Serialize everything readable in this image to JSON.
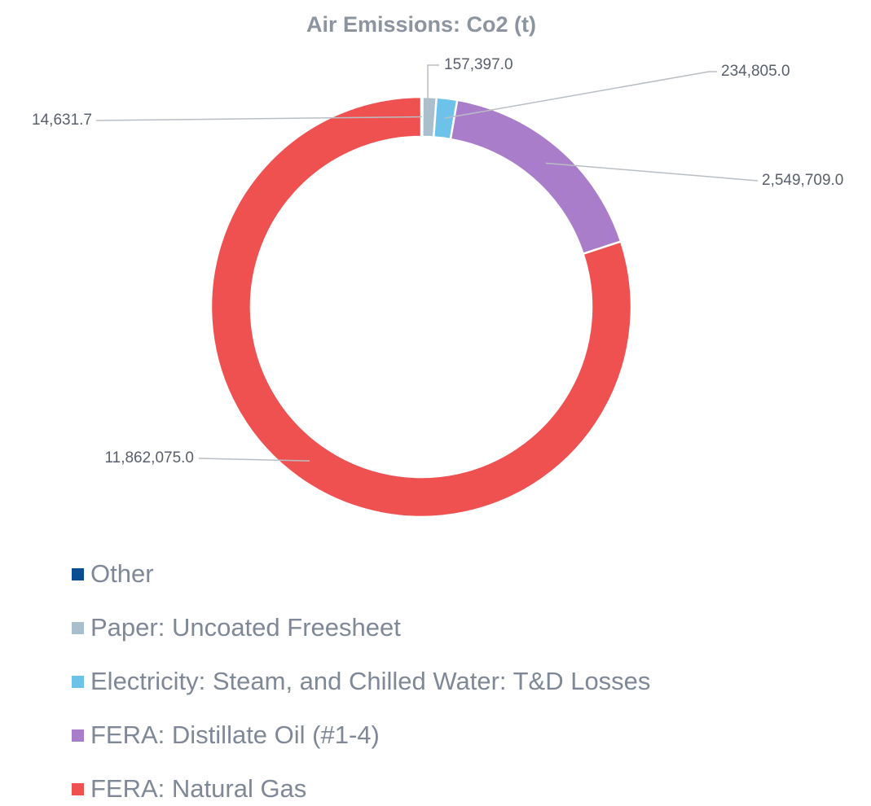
{
  "chart_data": {
    "type": "donut",
    "title": "Air Emissions: Co2 (t)",
    "categories": [
      "Other",
      "Paper: Uncoated Freesheet",
      "Electricity: Steam, and Chilled Water: T&D Losses",
      "FERA: Distillate Oil (#1-4)",
      "FERA: Natural Gas"
    ],
    "values": [
      14631.7,
      157397.0,
      234805.0,
      2549709.0,
      11862075.0
    ],
    "value_labels": [
      "14,631.7",
      "157,397.0",
      "234,805.0",
      "2,549,709.0",
      "11,862,075.0"
    ],
    "colors": [
      "#0b4d93",
      "#a9bfcb",
      "#6cc2e9",
      "#a97dca",
      "#ef5151"
    ],
    "legend": "bottom"
  }
}
